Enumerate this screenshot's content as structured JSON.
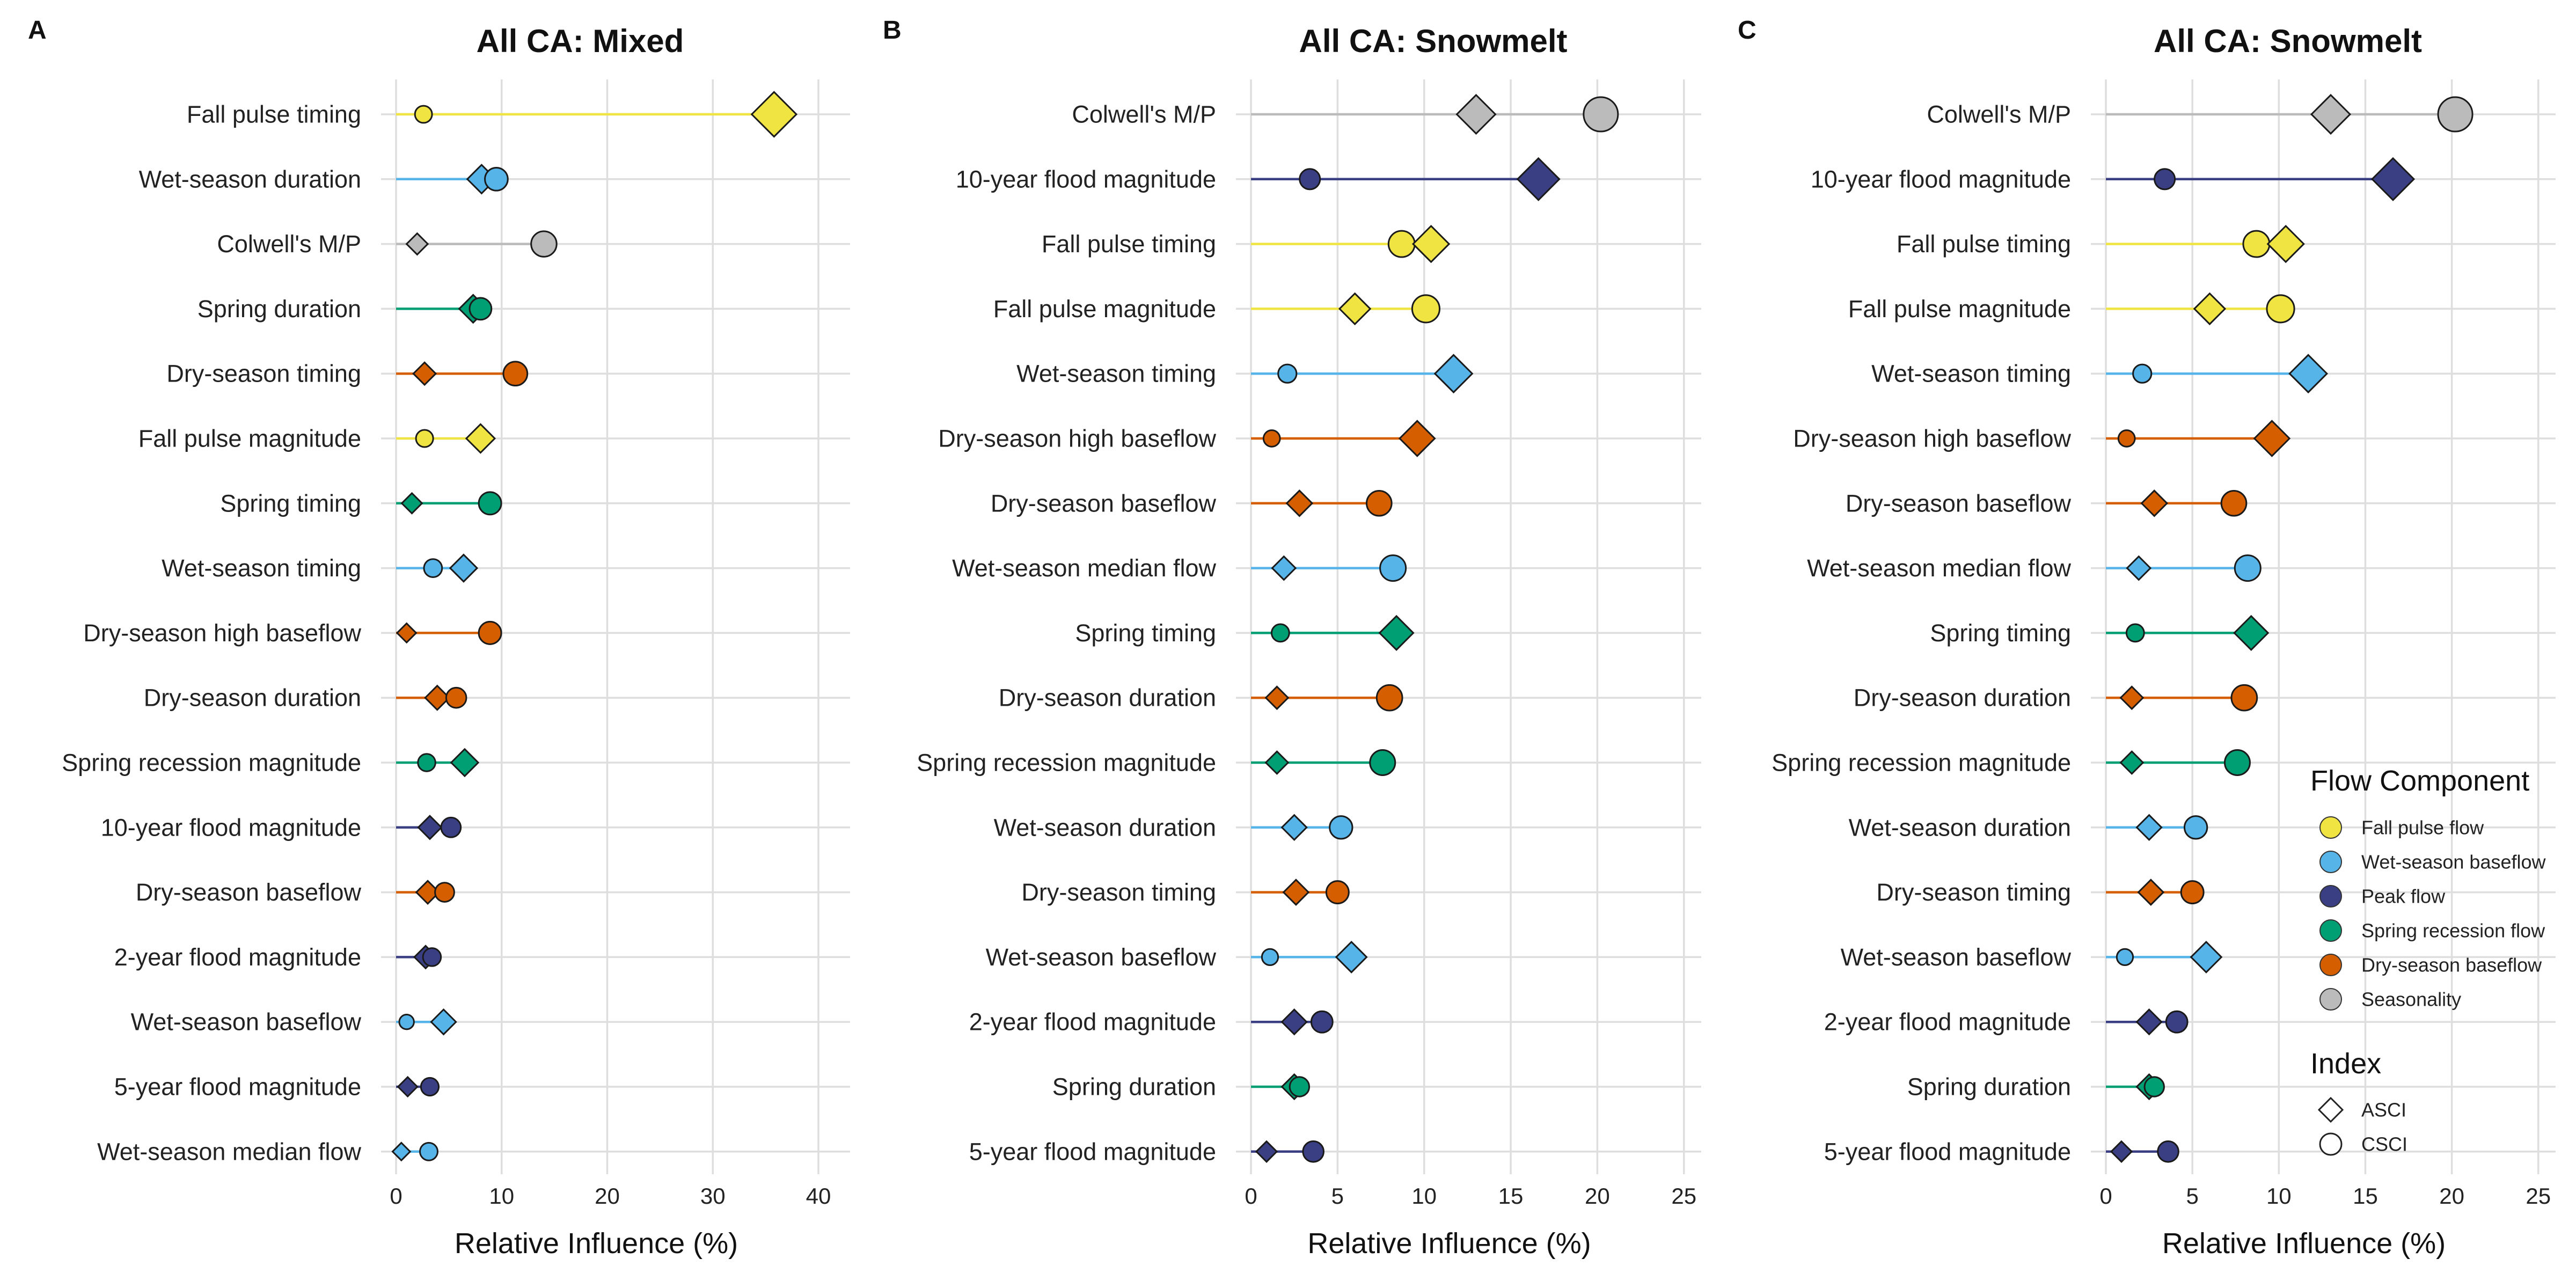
{
  "chart_data": [
    {
      "type": "scatter",
      "panel_label": "A",
      "title": "All CA: Mixed",
      "xlabel": "Relative Influence (%)",
      "xlim": [
        0,
        43
      ],
      "xticks": [
        0,
        10,
        20,
        30,
        40
      ],
      "grid": true,
      "rows": [
        {
          "label": "Fall pulse timing",
          "component": "Fall pulse flow",
          "asci": 35.8,
          "csci": 2.6
        },
        {
          "label": "Wet-season duration",
          "component": "Wet-season baseflow",
          "asci": 8.1,
          "csci": 9.5
        },
        {
          "label": "Colwell's M/P",
          "component": "Seasonality",
          "asci": 2.0,
          "csci": 14.0
        },
        {
          "label": "Spring duration",
          "component": "Spring recession flow",
          "asci": 7.3,
          "csci": 8.0
        },
        {
          "label": "Dry-season timing",
          "component": "Dry-season baseflow",
          "asci": 2.7,
          "csci": 11.3
        },
        {
          "label": "Fall pulse magnitude",
          "component": "Fall pulse flow",
          "asci": 8.0,
          "csci": 2.7
        },
        {
          "label": "Spring timing",
          "component": "Spring recession flow",
          "asci": 1.5,
          "csci": 8.9
        },
        {
          "label": "Wet-season timing",
          "component": "Wet-season baseflow",
          "asci": 6.4,
          "csci": 3.5
        },
        {
          "label": "Dry-season high baseflow",
          "component": "Dry-season baseflow",
          "asci": 1.0,
          "csci": 8.9
        },
        {
          "label": "Dry-season duration",
          "component": "Dry-season baseflow",
          "asci": 3.9,
          "csci": 5.7
        },
        {
          "label": "Spring recession magnitude",
          "component": "Spring recession flow",
          "asci": 6.5,
          "csci": 2.9
        },
        {
          "label": "10-year flood magnitude",
          "component": "Peak flow",
          "asci": 3.2,
          "csci": 5.2
        },
        {
          "label": "Dry-season baseflow",
          "component": "Dry-season baseflow",
          "asci": 3.0,
          "csci": 4.6
        },
        {
          "label": "2-year flood magnitude",
          "component": "Peak flow",
          "asci": 2.8,
          "csci": 3.4
        },
        {
          "label": "Wet-season baseflow",
          "component": "Wet-season baseflow",
          "asci": 4.5,
          "csci": 1.0
        },
        {
          "label": "5-year flood magnitude",
          "component": "Peak flow",
          "asci": 1.1,
          "csci": 3.2
        },
        {
          "label": "Wet-season median flow",
          "component": "Wet-season baseflow",
          "asci": 0.5,
          "csci": 3.1
        }
      ]
    },
    {
      "type": "scatter",
      "panel_label": "B",
      "title": "All CA: Snowmelt",
      "xlabel": "Relative Influence (%)",
      "xlim": [
        0,
        26
      ],
      "xticks": [
        0,
        5,
        10,
        15,
        20,
        25
      ],
      "grid": true,
      "rows": [
        {
          "label": "Colwell's M/P",
          "component": "Seasonality",
          "asci": 13.0,
          "csci": 20.2
        },
        {
          "label": "10-year flood magnitude",
          "component": "Peak flow",
          "asci": 16.6,
          "csci": 3.4
        },
        {
          "label": "Fall pulse timing",
          "component": "Fall pulse flow",
          "asci": 10.4,
          "csci": 8.7
        },
        {
          "label": "Fall pulse magnitude",
          "component": "Fall pulse flow",
          "asci": 6.0,
          "csci": 10.1
        },
        {
          "label": "Wet-season timing",
          "component": "Wet-season baseflow",
          "asci": 11.7,
          "csci": 2.1
        },
        {
          "label": "Dry-season high baseflow",
          "component": "Dry-season baseflow",
          "asci": 9.6,
          "csci": 1.2
        },
        {
          "label": "Dry-season baseflow",
          "component": "Dry-season baseflow",
          "asci": 2.8,
          "csci": 7.4
        },
        {
          "label": "Wet-season median flow",
          "component": "Wet-season baseflow",
          "asci": 1.9,
          "csci": 8.2
        },
        {
          "label": "Spring timing",
          "component": "Spring recession flow",
          "asci": 8.4,
          "csci": 1.7
        },
        {
          "label": "Dry-season duration",
          "component": "Dry-season baseflow",
          "asci": 1.5,
          "csci": 8.0
        },
        {
          "label": "Spring recession magnitude",
          "component": "Spring recession flow",
          "asci": 1.5,
          "csci": 7.6
        },
        {
          "label": "Wet-season duration",
          "component": "Wet-season baseflow",
          "asci": 2.5,
          "csci": 5.2
        },
        {
          "label": "Dry-season timing",
          "component": "Dry-season baseflow",
          "asci": 2.6,
          "csci": 5.0
        },
        {
          "label": "Wet-season baseflow",
          "component": "Wet-season baseflow",
          "asci": 5.8,
          "csci": 1.1
        },
        {
          "label": "2-year flood magnitude",
          "component": "Peak flow",
          "asci": 2.5,
          "csci": 4.1
        },
        {
          "label": "Spring duration",
          "component": "Spring recession flow",
          "asci": 2.5,
          "csci": 2.8
        },
        {
          "label": "5-year flood magnitude",
          "component": "Peak flow",
          "asci": 0.9,
          "csci": 3.6
        }
      ]
    },
    {
      "type": "scatter",
      "panel_label": "C",
      "title": "All CA: Snowmelt",
      "xlabel": "Relative Influence (%)",
      "xlim": [
        0,
        26
      ],
      "xticks": [
        0,
        5,
        10,
        15,
        20,
        25
      ],
      "grid": true,
      "legend_placement": "right",
      "rows": [
        {
          "label": "Colwell's M/P",
          "component": "Seasonality",
          "asci": 13.0,
          "csci": 20.2
        },
        {
          "label": "10-year flood magnitude",
          "component": "Peak flow",
          "asci": 16.6,
          "csci": 3.4
        },
        {
          "label": "Fall pulse timing",
          "component": "Fall pulse flow",
          "asci": 10.4,
          "csci": 8.7
        },
        {
          "label": "Fall pulse magnitude",
          "component": "Fall pulse flow",
          "asci": 6.0,
          "csci": 10.1
        },
        {
          "label": "Wet-season timing",
          "component": "Wet-season baseflow",
          "asci": 11.7,
          "csci": 2.1
        },
        {
          "label": "Dry-season high baseflow",
          "component": "Dry-season baseflow",
          "asci": 9.6,
          "csci": 1.2
        },
        {
          "label": "Dry-season baseflow",
          "component": "Dry-season baseflow",
          "asci": 2.8,
          "csci": 7.4
        },
        {
          "label": "Wet-season median flow",
          "component": "Wet-season baseflow",
          "asci": 1.9,
          "csci": 8.2
        },
        {
          "label": "Spring timing",
          "component": "Spring recession flow",
          "asci": 8.4,
          "csci": 1.7
        },
        {
          "label": "Dry-season duration",
          "component": "Dry-season baseflow",
          "asci": 1.5,
          "csci": 8.0
        },
        {
          "label": "Spring recession magnitude",
          "component": "Spring recession flow",
          "asci": 1.5,
          "csci": 7.6
        },
        {
          "label": "Wet-season duration",
          "component": "Wet-season baseflow",
          "asci": 2.5,
          "csci": 5.2
        },
        {
          "label": "Dry-season timing",
          "component": "Dry-season baseflow",
          "asci": 2.6,
          "csci": 5.0
        },
        {
          "label": "Wet-season baseflow",
          "component": "Wet-season baseflow",
          "asci": 5.8,
          "csci": 1.1
        },
        {
          "label": "2-year flood magnitude",
          "component": "Peak flow",
          "asci": 2.5,
          "csci": 4.1
        },
        {
          "label": "Spring duration",
          "component": "Spring recession flow",
          "asci": 2.5,
          "csci": 2.8
        },
        {
          "label": "5-year flood magnitude",
          "component": "Peak flow",
          "asci": 0.9,
          "csci": 3.6
        }
      ]
    }
  ],
  "legend": {
    "title": "Flow Component",
    "items": [
      {
        "label": "Fall pulse flow",
        "color": "#F0E442"
      },
      {
        "label": "Wet-season baseflow",
        "color": "#56B4E9"
      },
      {
        "label": "Peak flow",
        "color": "#3A3F84"
      },
      {
        "label": "Spring recession flow",
        "color": "#009E73"
      },
      {
        "label": "Dry-season baseflow",
        "color": "#D55E00"
      },
      {
        "label": "Seasonality",
        "color": "#BBBBBB"
      }
    ],
    "index_title": "Index",
    "index_items": [
      {
        "label": "ASCI",
        "shape": "diamond"
      },
      {
        "label": "CSCI",
        "shape": "circle"
      }
    ]
  }
}
